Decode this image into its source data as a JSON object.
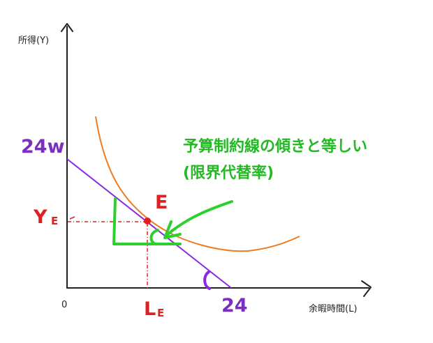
{
  "labels": {
    "y_axis": "所得(Y)",
    "x_axis": "余暇時間(L)",
    "origin": "0",
    "y_intercept": "24w",
    "x_intercept": "24",
    "point": "E",
    "y_e_main": "Y",
    "y_e_sub": "E",
    "l_e_main": "L",
    "l_e_sub": "E",
    "note_line1": "予算制約線の傾きと等しい",
    "note_line2": "(限界代替率)"
  },
  "colors": {
    "axis": "#222222",
    "budget_line": "#8a2be2",
    "budget_text": "#7b2fbf",
    "indifference_curve": "#f07a1e",
    "equilibrium": "#e02020",
    "annotation": "#2ccf2c",
    "note_text": "#22b922"
  }
}
